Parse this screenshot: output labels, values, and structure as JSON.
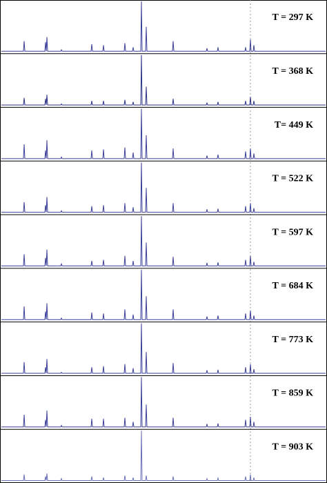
{
  "chart_data": [
    {
      "type": "line",
      "annotation": "T = 297 K",
      "color": "#3b3f98",
      "xlim": [
        0,
        474
      ],
      "ylim": [
        0,
        100
      ],
      "x": [
        2,
        34,
        35,
        36,
        65,
        66,
        67,
        67,
        68,
        69,
        88,
        89,
        90,
        132,
        133,
        134,
        149,
        150,
        151,
        180,
        181,
        182,
        192,
        193,
        194,
        204,
        205,
        206,
        211,
        212,
        213,
        250,
        251,
        252,
        299,
        300,
        301,
        315,
        316,
        317,
        355,
        356,
        357,
        362,
        363,
        364,
        367,
        368,
        369,
        472
      ],
      "values": [
        2,
        2,
        22,
        2,
        2,
        20,
        2,
        2,
        30,
        2,
        2,
        5,
        2,
        2,
        16,
        2,
        2,
        14,
        2,
        2,
        18,
        2,
        2,
        10,
        2,
        2,
        100,
        2,
        2,
        50,
        2,
        2,
        22,
        2,
        2,
        8,
        2,
        2,
        10,
        2,
        2,
        10,
        2,
        2,
        25,
        2,
        2,
        14,
        2,
        2
      ]
    },
    {
      "type": "line",
      "annotation": "T = 368 K",
      "color": "#2c3288",
      "xlim": [
        0,
        474
      ],
      "ylim": [
        0,
        100
      ],
      "x": [
        2,
        34,
        35,
        36,
        65,
        66,
        67,
        67,
        68,
        69,
        88,
        89,
        90,
        132,
        133,
        134,
        149,
        150,
        151,
        180,
        181,
        182,
        192,
        193,
        194,
        204,
        205,
        206,
        211,
        212,
        213,
        250,
        251,
        252,
        299,
        300,
        301,
        315,
        316,
        317,
        355,
        356,
        357,
        362,
        363,
        364,
        367,
        368,
        369,
        472
      ],
      "values": [
        2,
        2,
        16,
        2,
        2,
        14,
        2,
        2,
        22,
        2,
        2,
        4,
        2,
        2,
        10,
        2,
        2,
        10,
        2,
        2,
        12,
        2,
        2,
        8,
        2,
        2,
        100,
        2,
        2,
        38,
        2,
        2,
        14,
        2,
        2,
        6,
        2,
        2,
        8,
        2,
        2,
        10,
        2,
        2,
        18,
        2,
        2,
        10,
        2,
        2
      ]
    },
    {
      "type": "line",
      "annotation": "T= 449 K",
      "color": "#3b3f98",
      "xlim": [
        0,
        474
      ],
      "ylim": [
        0,
        100
      ],
      "x": [
        2,
        34,
        35,
        36,
        65,
        66,
        67,
        67,
        68,
        69,
        88,
        89,
        90,
        132,
        133,
        134,
        149,
        150,
        151,
        180,
        181,
        182,
        192,
        193,
        194,
        204,
        205,
        206,
        211,
        212,
        213,
        250,
        251,
        252,
        299,
        300,
        301,
        315,
        316,
        317,
        355,
        356,
        357,
        362,
        363,
        364,
        367,
        368,
        369,
        472
      ],
      "values": [
        2,
        2,
        30,
        2,
        2,
        18,
        2,
        2,
        38,
        2,
        2,
        5,
        2,
        2,
        18,
        2,
        2,
        20,
        2,
        2,
        24,
        2,
        2,
        14,
        2,
        2,
        100,
        2,
        2,
        48,
        2,
        2,
        22,
        2,
        2,
        8,
        2,
        2,
        10,
        2,
        2,
        16,
        2,
        2,
        22,
        2,
        2,
        12,
        2,
        2
      ]
    },
    {
      "type": "line",
      "annotation": "T = 522 K",
      "color": "#3b3f98",
      "xlim": [
        0,
        474
      ],
      "ylim": [
        0,
        100
      ],
      "x": [
        2,
        34,
        35,
        36,
        65,
        66,
        67,
        67,
        68,
        69,
        88,
        89,
        90,
        132,
        133,
        134,
        149,
        150,
        151,
        180,
        181,
        182,
        192,
        193,
        194,
        204,
        205,
        206,
        211,
        212,
        213,
        250,
        251,
        252,
        299,
        300,
        301,
        315,
        316,
        317,
        355,
        356,
        357,
        362,
        363,
        364,
        367,
        368,
        369,
        472
      ],
      "values": [
        2,
        2,
        22,
        2,
        2,
        16,
        2,
        2,
        32,
        2,
        2,
        5,
        2,
        2,
        14,
        2,
        2,
        16,
        2,
        2,
        20,
        2,
        2,
        12,
        2,
        2,
        100,
        2,
        2,
        50,
        2,
        2,
        20,
        2,
        2,
        8,
        2,
        2,
        9,
        2,
        2,
        14,
        2,
        2,
        20,
        2,
        2,
        10,
        2,
        2
      ]
    },
    {
      "type": "line",
      "annotation": "T = 597 K",
      "color": "#3b3f98",
      "xlim": [
        0,
        474
      ],
      "ylim": [
        0,
        100
      ],
      "x": [
        2,
        34,
        35,
        36,
        65,
        66,
        67,
        67,
        68,
        69,
        88,
        89,
        90,
        132,
        133,
        134,
        149,
        150,
        151,
        180,
        181,
        182,
        192,
        193,
        194,
        204,
        205,
        206,
        211,
        212,
        213,
        250,
        251,
        252,
        299,
        300,
        301,
        315,
        316,
        317,
        355,
        356,
        357,
        362,
        363,
        364,
        367,
        368,
        369,
        472
      ],
      "values": [
        2,
        2,
        25,
        2,
        2,
        18,
        2,
        2,
        34,
        2,
        2,
        6,
        2,
        2,
        12,
        2,
        2,
        14,
        2,
        2,
        22,
        2,
        2,
        12,
        2,
        2,
        100,
        2,
        2,
        48,
        2,
        2,
        20,
        2,
        2,
        8,
        2,
        2,
        9,
        2,
        2,
        14,
        2,
        2,
        22,
        2,
        2,
        10,
        2,
        2
      ]
    },
    {
      "type": "line",
      "annotation": "T = 684 K",
      "color": "#3b3f98",
      "xlim": [
        0,
        474
      ],
      "ylim": [
        0,
        100
      ],
      "x": [
        2,
        34,
        35,
        36,
        65,
        66,
        67,
        67,
        68,
        69,
        88,
        89,
        90,
        132,
        133,
        134,
        149,
        150,
        151,
        180,
        181,
        182,
        192,
        193,
        194,
        204,
        205,
        206,
        211,
        212,
        213,
        250,
        251,
        252,
        299,
        300,
        301,
        315,
        316,
        317,
        355,
        356,
        357,
        362,
        363,
        364,
        367,
        368,
        369,
        472
      ],
      "values": [
        2,
        2,
        28,
        2,
        2,
        18,
        2,
        2,
        34,
        2,
        2,
        5,
        2,
        2,
        16,
        2,
        2,
        14,
        2,
        2,
        22,
        2,
        2,
        12,
        2,
        2,
        100,
        2,
        2,
        48,
        2,
        2,
        22,
        2,
        2,
        8,
        2,
        2,
        10,
        2,
        2,
        14,
        2,
        2,
        20,
        2,
        2,
        10,
        2,
        2
      ]
    },
    {
      "type": "line",
      "annotation": "T = 773 K",
      "color": "#3b3f98",
      "xlim": [
        0,
        474
      ],
      "ylim": [
        0,
        100
      ],
      "x": [
        2,
        34,
        35,
        36,
        65,
        66,
        67,
        67,
        68,
        69,
        88,
        89,
        90,
        132,
        133,
        134,
        149,
        150,
        151,
        180,
        181,
        182,
        192,
        193,
        194,
        204,
        205,
        206,
        211,
        212,
        213,
        250,
        251,
        252,
        299,
        300,
        301,
        315,
        316,
        317,
        355,
        356,
        357,
        362,
        363,
        364,
        367,
        368,
        369,
        472
      ],
      "values": [
        2,
        2,
        24,
        2,
        2,
        14,
        2,
        2,
        30,
        2,
        2,
        4,
        2,
        2,
        14,
        2,
        2,
        16,
        2,
        2,
        20,
        2,
        2,
        12,
        2,
        2,
        100,
        2,
        2,
        44,
        2,
        2,
        22,
        2,
        2,
        8,
        2,
        2,
        9,
        2,
        2,
        14,
        2,
        2,
        20,
        2,
        2,
        10,
        2,
        2
      ]
    },
    {
      "type": "line",
      "annotation": "T = 859 K",
      "color": "#3b3f98",
      "xlim": [
        0,
        474
      ],
      "ylim": [
        0,
        100
      ],
      "x": [
        2,
        34,
        35,
        36,
        65,
        66,
        67,
        67,
        68,
        69,
        88,
        89,
        90,
        132,
        133,
        134,
        149,
        150,
        151,
        180,
        181,
        182,
        192,
        193,
        194,
        204,
        205,
        206,
        211,
        212,
        213,
        250,
        251,
        252,
        299,
        300,
        301,
        315,
        316,
        317,
        355,
        356,
        357,
        362,
        363,
        364,
        367,
        368,
        369,
        472
      ],
      "values": [
        2,
        2,
        26,
        2,
        2,
        16,
        2,
        2,
        34,
        2,
        2,
        5,
        2,
        2,
        18,
        2,
        2,
        18,
        2,
        2,
        20,
        2,
        2,
        12,
        2,
        2,
        100,
        2,
        2,
        46,
        2,
        2,
        20,
        2,
        2,
        8,
        2,
        2,
        9,
        2,
        2,
        16,
        2,
        2,
        22,
        2,
        2,
        12,
        2,
        2
      ]
    },
    {
      "type": "line",
      "annotation": "T = 903 K",
      "color": "#6a6fb8",
      "xlim": [
        0,
        474
      ],
      "ylim": [
        0,
        100
      ],
      "x": [
        2,
        34,
        35,
        36,
        65,
        66,
        67,
        67,
        68,
        69,
        88,
        89,
        90,
        132,
        133,
        134,
        149,
        150,
        151,
        180,
        181,
        182,
        192,
        193,
        194,
        204,
        205,
        206,
        211,
        212,
        213,
        250,
        251,
        252,
        299,
        300,
        301,
        315,
        316,
        317,
        355,
        356,
        357,
        362,
        363,
        364,
        367,
        368,
        369,
        472
      ],
      "values": [
        2,
        2,
        14,
        2,
        2,
        10,
        2,
        2,
        16,
        2,
        2,
        6,
        2,
        2,
        10,
        2,
        2,
        8,
        2,
        2,
        12,
        2,
        2,
        8,
        2,
        2,
        100,
        2,
        2,
        12,
        2,
        2,
        10,
        2,
        2,
        6,
        2,
        2,
        7,
        2,
        2,
        10,
        2,
        2,
        14,
        2,
        2,
        8,
        2,
        2
      ]
    }
  ]
}
